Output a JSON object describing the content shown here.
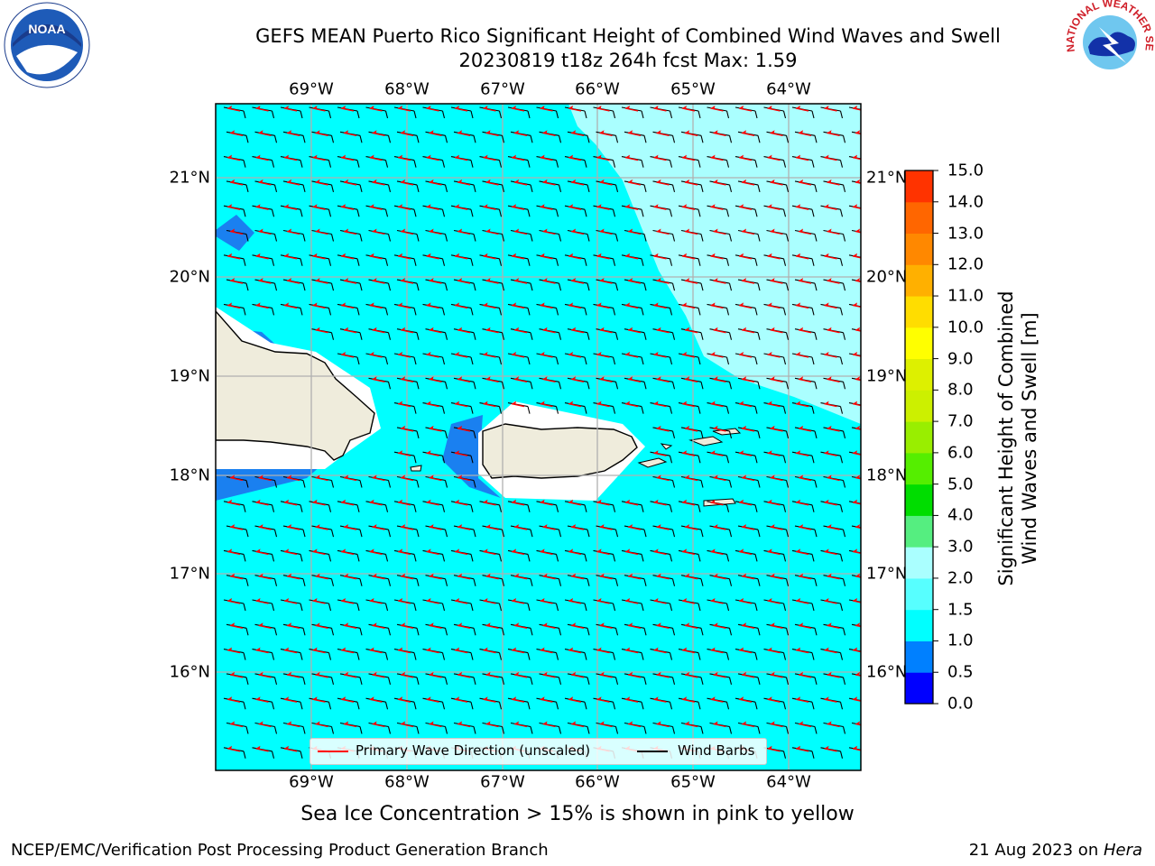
{
  "header": {
    "title_line1": "GEFS MEAN Puerto Rico Significant Height of Combined Wind Waves and Swell",
    "title_line2": "20230819 t18z 264h fcst   Max: 1.59",
    "noaa_logo_text": "NOAA",
    "nws_logo_text": "NATIONAL WEATHER SERVICE"
  },
  "map": {
    "lon_labels": [
      "69°W",
      "68°W",
      "67°W",
      "66°W",
      "65°W",
      "64°W"
    ],
    "lat_labels": [
      "21°N",
      "20°N",
      "19°N",
      "18°N",
      "17°N",
      "16°N"
    ],
    "ocean_color": "#00ffff",
    "land_color": "#efecdc"
  },
  "legend": {
    "wave_label": "Primary Wave Direction (unscaled)",
    "barb_label": "Wind Barbs",
    "wave_color": "#ff0000",
    "barb_color": "#000000"
  },
  "colorbar": {
    "title_line1": "Significant Height of Combined",
    "title_line2": "Wind Waves and Swell [m]",
    "ticks": [
      "15.0",
      "14.0",
      "13.0",
      "12.0",
      "11.0",
      "10.0",
      "9.0",
      "8.0",
      "7.0",
      "6.0",
      "5.0",
      "4.0",
      "3.0",
      "2.0",
      "1.5",
      "1.0",
      "0.5",
      "0.0"
    ],
    "colors": [
      "#0000ff",
      "#0080ff",
      "#00ffff",
      "#57ffff",
      "#aaffff",
      "#55ee80",
      "#00dd00",
      "#55ee00",
      "#99ee00",
      "#ccf000",
      "#ddf000",
      "#ffff00",
      "#ffdd00",
      "#ffb000",
      "#ff8800",
      "#ff6600",
      "#ff3300",
      "#ff0000"
    ]
  },
  "caption": "Sea Ice Concentration > 15% is shown in pink to yellow",
  "footer": {
    "left": "NCEP/EMC/Verification Post Processing Product Generation Branch",
    "right_date": "21 Aug 2023 on ",
    "right_host": "Hera"
  }
}
